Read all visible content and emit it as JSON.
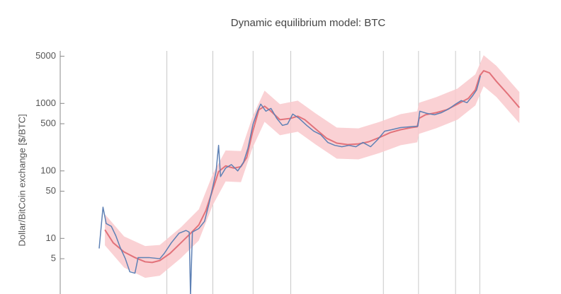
{
  "chart_data": {
    "type": "line",
    "title": "Dynamic equilibrium model: BTC",
    "ylabel": "Dollar/BitCoin exchange [$/BTC]",
    "log_y": true,
    "ylim": [
      1.5,
      6000
    ],
    "yticks": [
      5,
      10,
      50,
      100,
      500,
      1000,
      5000
    ],
    "xlim": [
      2010.78,
      2018.1
    ],
    "xgrid": [
      2012.45,
      2013.17,
      2013.8,
      2014.39,
      2015.84,
      2016.39,
      2016.97,
      2017.35
    ],
    "band": {
      "color": "#f9c9cc",
      "x": [
        2011.48,
        2011.78,
        2012.11,
        2012.34,
        2012.67,
        2012.95,
        2013.17,
        2013.37,
        2013.61,
        2013.79,
        2013.98,
        2014.22,
        2014.5,
        2014.78,
        2015.11,
        2015.45,
        2015.78,
        2016.11,
        2016.37,
        2016.4,
        2016.67,
        2017.0,
        2017.28,
        2017.41,
        2017.61,
        2017.97
      ],
      "upper": [
        22.8,
        10.7,
        7.7,
        8.0,
        14.6,
        26.9,
        90,
        201,
        197,
        629,
        1544,
        974,
        1100,
        711,
        439,
        427,
        532,
        694,
        765,
        1022,
        1241,
        1658,
        2695,
        5182,
        3601,
        1471
      ],
      "lower": [
        7.9,
        3.7,
        2.6,
        2.8,
        5.1,
        9.3,
        31.3,
        69.7,
        68,
        218,
        534,
        337,
        381,
        246,
        152,
        148,
        184,
        240,
        265,
        354,
        429,
        574,
        932,
        1793,
        1246,
        509
      ]
    },
    "series": [
      {
        "color": "#e2727a",
        "x": [
          2011.48,
          2011.61,
          2011.78,
          2011.95,
          2012.11,
          2012.22,
          2012.34,
          2012.5,
          2012.67,
          2012.81,
          2012.95,
          2013.06,
          2013.17,
          2013.26,
          2013.37,
          2013.5,
          2013.61,
          2013.7,
          2013.79,
          2013.89,
          2013.98,
          2014.08,
          2014.22,
          2014.39,
          2014.5,
          2014.61,
          2014.78,
          2014.95,
          2015.11,
          2015.28,
          2015.45,
          2015.61,
          2015.78,
          2015.95,
          2016.11,
          2016.28,
          2016.37,
          2016.4,
          2016.5,
          2016.67,
          2016.83,
          2017.0,
          2017.17,
          2017.28,
          2017.35,
          2017.41,
          2017.5,
          2017.61,
          2017.78,
          2017.97
        ],
        "values": [
          13.4,
          8.6,
          6.3,
          5.2,
          4.5,
          4.4,
          4.7,
          6.0,
          8.6,
          11.6,
          15.8,
          25.7,
          53.2,
          97.5,
          118.5,
          110,
          115.6,
          158,
          370,
          804,
          908,
          766,
          573,
          601,
          647,
          573,
          418,
          305,
          258,
          245,
          251,
          270,
          313,
          370,
          408,
          439,
          450,
          601,
          679,
          730,
          804,
          975,
          1186,
          1585,
          2570,
          3048,
          2838,
          2118,
          1403,
          865
        ]
      },
      {
        "color": "#5e81b5",
        "x": [
          2011.39,
          2011.45,
          2011.5,
          2011.58,
          2011.65,
          2011.72,
          2011.8,
          2011.87,
          2011.95,
          2012.0,
          2012.17,
          2012.34,
          2012.41,
          2012.52,
          2012.64,
          2012.75,
          2012.8,
          2012.82,
          2012.85,
          2012.95,
          2013.04,
          2013.11,
          2013.18,
          2013.22,
          2013.26,
          2013.29,
          2013.37,
          2013.46,
          2013.56,
          2013.65,
          2013.72,
          2013.8,
          2013.87,
          2013.92,
          2014.0,
          2014.08,
          2014.17,
          2014.26,
          2014.34,
          2014.42,
          2014.52,
          2014.64,
          2014.75,
          2014.86,
          2014.97,
          2015.08,
          2015.19,
          2015.3,
          2015.41,
          2015.52,
          2015.64,
          2015.75,
          2015.86,
          2015.97,
          2016.11,
          2016.26,
          2016.38,
          2016.41,
          2016.52,
          2016.64,
          2016.75,
          2016.86,
          2016.97,
          2017.06,
          2017.15,
          2017.24,
          2017.3,
          2017.36
        ],
        "values": [
          7.1,
          29,
          16.6,
          15.1,
          11.0,
          7.3,
          5.0,
          3.2,
          3.05,
          5.2,
          5.2,
          5.0,
          6.0,
          8.6,
          11.9,
          13.1,
          12.4,
          1.4,
          12.4,
          14.0,
          17.9,
          32.8,
          64.6,
          97.5,
          239,
          82.4,
          110,
          124,
          100,
          134,
          217,
          495,
          766,
          975,
          766,
          844,
          601,
          472,
          495,
          695,
          601,
          472,
          388,
          344,
          264,
          239,
          228,
          239,
          228,
          264,
          228,
          290,
          388,
          408,
          439,
          450,
          460,
          766,
          713,
          679,
          730,
          824,
          975,
          1101,
          1025,
          1306,
          1585,
          2570
        ]
      }
    ]
  }
}
